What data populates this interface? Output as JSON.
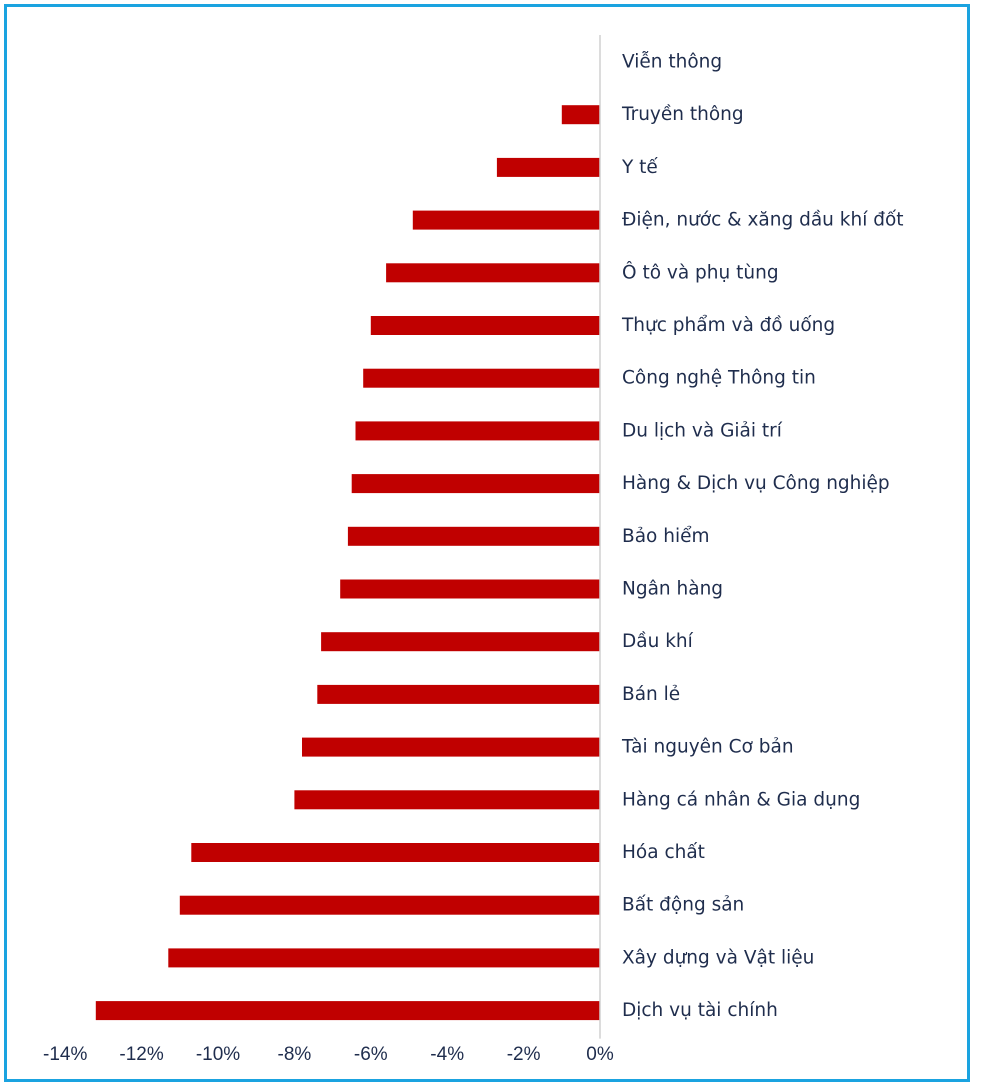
{
  "chart_data": {
    "type": "bar",
    "orientation": "horizontal",
    "categories": [
      "Viễn thông",
      "Truyền thông",
      "Y tế",
      "Điện, nước & xăng dầu khí đốt",
      "Ô tô và phụ tùng",
      "Thực phẩm và đồ uống",
      "Công nghệ Thông tin",
      "Du lịch và Giải trí",
      "Hàng & Dịch vụ Công nghiệp",
      "Bảo hiểm",
      "Ngân hàng",
      "Dầu khí",
      "Bán lẻ",
      "Tài nguyên Cơ bản",
      "Hàng cá nhân & Gia dụng",
      "Hóa chất",
      "Bất động sản",
      "Xây dựng và Vật liệu",
      "Dịch vụ tài chính"
    ],
    "values": [
      0,
      -1.0,
      -2.7,
      -4.9,
      -5.6,
      -6.0,
      -6.2,
      -6.4,
      -6.5,
      -6.6,
      -6.8,
      -7.3,
      -7.4,
      -7.8,
      -8.0,
      -10.7,
      -11.0,
      -11.3,
      -13.2
    ],
    "xlim": [
      -14,
      0
    ],
    "xticks": [
      "-14%",
      "-12%",
      "-10%",
      "-8%",
      "-6%",
      "-4%",
      "-2%",
      "0%"
    ],
    "title": "",
    "xlabel": "",
    "ylabel": "",
    "grid": false,
    "colors": {
      "bar": "#c00000",
      "axis": "#d0d0d0",
      "text": "#1f2d4d",
      "border": "#1aa3e0"
    }
  }
}
